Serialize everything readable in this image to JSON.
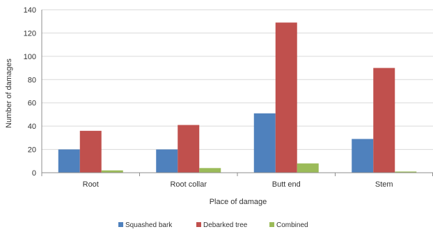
{
  "chart_data": {
    "type": "bar",
    "title": "",
    "xlabel": "Place of damage",
    "ylabel": "Number of damages",
    "categories": [
      "Root",
      "Root collar",
      "Butt end",
      "Stem"
    ],
    "series": [
      {
        "name": "Squashed bark",
        "color": "#4f81bd",
        "values": [
          20,
          20,
          51,
          29
        ]
      },
      {
        "name": "Debarked tree",
        "color": "#c0504d",
        "values": [
          36,
          41,
          129,
          90
        ]
      },
      {
        "name": "Combined",
        "color": "#9bbb59",
        "values": [
          2,
          4,
          8,
          1
        ]
      }
    ],
    "ylim": [
      0,
      140
    ],
    "yticks": [
      0,
      20,
      40,
      60,
      80,
      100,
      120,
      140
    ],
    "grid": true,
    "legend_position": "bottom"
  }
}
